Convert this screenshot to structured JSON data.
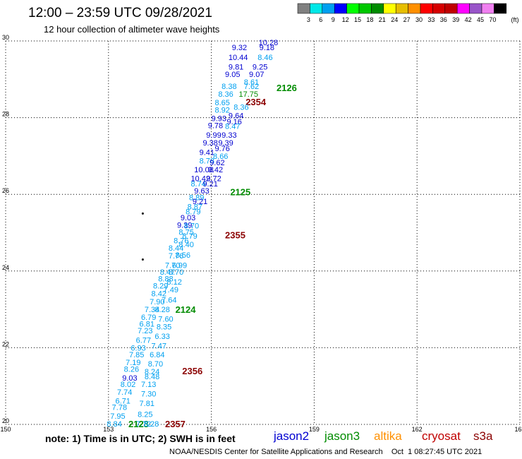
{
  "header": {
    "title": "12:00 – 23:59 UTC 09/28/2021",
    "subtitle": "12 hour collection of altimeter wave heights"
  },
  "legend": {
    "unit": "(ft)",
    "bins": [
      {
        "label": "3",
        "color": "#808080"
      },
      {
        "label": "6",
        "color": "#00e8e8"
      },
      {
        "label": "9",
        "color": "#00a0f0"
      },
      {
        "label": "12",
        "color": "#0000ff"
      },
      {
        "label": "15",
        "color": "#00ff00"
      },
      {
        "label": "18",
        "color": "#00c800"
      },
      {
        "label": "21",
        "color": "#008c00"
      },
      {
        "label": "24",
        "color": "#ffff00"
      },
      {
        "label": "27",
        "color": "#e6be00"
      },
      {
        "label": "30",
        "color": "#ff9000"
      },
      {
        "label": "33",
        "color": "#ff0000"
      },
      {
        "label": "36",
        "color": "#d60000"
      },
      {
        "label": "39",
        "color": "#c00000"
      },
      {
        "label": "42",
        "color": "#ff00ff"
      },
      {
        "label": "45",
        "color": "#9955c9"
      },
      {
        "label": "70",
        "color": "#f080f0"
      },
      {
        "label": "",
        "color": "#000000"
      }
    ]
  },
  "footer": {
    "note": "note: 1) Time is in UTC; 2) SWH is in feet",
    "credit": "NOAA/NESDIS Center for Satellite Applications and Research    Oct  1 08:27:45 UTC 2021",
    "missions": [
      {
        "name": "jason2",
        "color": "#0000d0"
      },
      {
        "name": "jason3",
        "color": "#008c00"
      },
      {
        "name": "altika",
        "color": "#ff9000"
      },
      {
        "name": "cryosat",
        "color": "#c00000"
      },
      {
        "name": "s3a",
        "color": "#8b0000"
      }
    ]
  },
  "chart_data": {
    "type": "scatter",
    "xlim": [
      150,
      165
    ],
    "ylim": [
      20,
      30
    ],
    "x_ticks": [
      150,
      153,
      156,
      159,
      162,
      165
    ],
    "y_ticks": [
      20,
      22,
      24,
      26,
      28,
      30
    ],
    "grid": true,
    "colors": {
      "blue": "#0000d0",
      "cyan": "#00a0f0",
      "green": "#008c00",
      "maroon": "#8b0000",
      "black": "#000000"
    },
    "labels": [
      {
        "t": "10.28",
        "x": 157.38,
        "y": 29.96,
        "c": "blue"
      },
      {
        "t": "9.32",
        "x": 156.6,
        "y": 29.83,
        "c": "blue"
      },
      {
        "t": "9.18",
        "x": 157.4,
        "y": 29.83,
        "c": "blue"
      },
      {
        "t": "10.44",
        "x": 156.5,
        "y": 29.58,
        "c": "blue"
      },
      {
        "t": "8.46",
        "x": 157.35,
        "y": 29.58,
        "c": "cyan"
      },
      {
        "t": "9.81",
        "x": 156.5,
        "y": 29.33,
        "c": "blue"
      },
      {
        "t": "9.25",
        "x": 157.2,
        "y": 29.33,
        "c": "blue"
      },
      {
        "t": "9.05",
        "x": 156.4,
        "y": 29.13,
        "c": "blue"
      },
      {
        "t": "9.07",
        "x": 157.1,
        "y": 29.13,
        "c": "blue"
      },
      {
        "t": "8.61",
        "x": 156.95,
        "y": 28.93,
        "c": "cyan"
      },
      {
        "t": "8.38",
        "x": 156.3,
        "y": 28.82,
        "c": "cyan"
      },
      {
        "t": "7.62",
        "x": 156.95,
        "y": 28.82,
        "c": "cyan"
      },
      {
        "t": "2126",
        "x": 157.9,
        "y": 28.77,
        "c": "green",
        "big": true
      },
      {
        "t": "8.36",
        "x": 156.2,
        "y": 28.62,
        "c": "cyan"
      },
      {
        "t": "17.75",
        "x": 156.8,
        "y": 28.62,
        "c": "green"
      },
      {
        "t": "8.65",
        "x": 156.1,
        "y": 28.4,
        "c": "cyan"
      },
      {
        "t": "2354",
        "x": 157.0,
        "y": 28.4,
        "c": "maroon",
        "big": true
      },
      {
        "t": "8.36",
        "x": 156.65,
        "y": 28.28,
        "c": "cyan"
      },
      {
        "t": "8.92",
        "x": 156.1,
        "y": 28.2,
        "c": "cyan"
      },
      {
        "t": "9.64",
        "x": 156.5,
        "y": 28.06,
        "c": "blue"
      },
      {
        "t": "9.93",
        "x": 156.0,
        "y": 27.98,
        "c": "blue"
      },
      {
        "t": "9.16",
        "x": 156.45,
        "y": 27.9,
        "c": "blue"
      },
      {
        "t": "9.78",
        "x": 155.9,
        "y": 27.8,
        "c": "blue"
      },
      {
        "t": "8.47",
        "x": 156.4,
        "y": 27.78,
        "c": "cyan"
      },
      {
        "t": "9.99",
        "x": 155.85,
        "y": 27.55,
        "c": "blue"
      },
      {
        "t": "9.33",
        "x": 156.3,
        "y": 27.55,
        "c": "blue"
      },
      {
        "t": "9.38",
        "x": 155.75,
        "y": 27.35,
        "c": "blue"
      },
      {
        "t": "9.39",
        "x": 156.2,
        "y": 27.35,
        "c": "blue"
      },
      {
        "t": "9.76",
        "x": 156.1,
        "y": 27.2,
        "c": "blue"
      },
      {
        "t": "9.41",
        "x": 155.65,
        "y": 27.1,
        "c": "blue"
      },
      {
        "t": "8.66",
        "x": 156.05,
        "y": 27.0,
        "c": "cyan"
      },
      {
        "t": "8.78",
        "x": 155.65,
        "y": 26.88,
        "c": "cyan"
      },
      {
        "t": "9.62",
        "x": 155.95,
        "y": 26.83,
        "c": "blue"
      },
      {
        "t": "10.08",
        "x": 155.5,
        "y": 26.65,
        "c": "blue"
      },
      {
        "t": "9.42",
        "x": 155.9,
        "y": 26.65,
        "c": "blue"
      },
      {
        "t": "10.42",
        "x": 155.4,
        "y": 26.42,
        "c": "blue"
      },
      {
        "t": "9.72",
        "x": 155.85,
        "y": 26.42,
        "c": "blue"
      },
      {
        "t": "8.74",
        "x": 155.4,
        "y": 26.28,
        "c": "cyan"
      },
      {
        "t": "9.21",
        "x": 155.75,
        "y": 26.28,
        "c": "blue"
      },
      {
        "t": "9.63",
        "x": 155.5,
        "y": 26.1,
        "c": "blue"
      },
      {
        "t": "2125",
        "x": 156.55,
        "y": 26.05,
        "c": "green",
        "big": true
      },
      {
        "t": "8.89",
        "x": 155.35,
        "y": 25.92,
        "c": "cyan"
      },
      {
        "t": "9.21",
        "x": 155.45,
        "y": 25.82,
        "c": "blue"
      },
      {
        "t": "8.87",
        "x": 155.3,
        "y": 25.68,
        "c": "cyan"
      },
      {
        "t": "8.79",
        "x": 155.25,
        "y": 25.55,
        "c": "cyan"
      },
      {
        "t": "9.03",
        "x": 155.1,
        "y": 25.4,
        "c": "blue"
      },
      {
        "t": "9.39",
        "x": 155.0,
        "y": 25.2,
        "c": "blue"
      },
      {
        "t": "8.70",
        "x": 155.2,
        "y": 25.18,
        "c": "cyan"
      },
      {
        "t": "8.75",
        "x": 155.05,
        "y": 25.02,
        "c": "cyan"
      },
      {
        "t": "8.79",
        "x": 155.15,
        "y": 24.92,
        "c": "cyan"
      },
      {
        "t": "2355",
        "x": 156.4,
        "y": 24.93,
        "c": "maroon",
        "big": true
      },
      {
        "t": "8.76",
        "x": 154.9,
        "y": 24.8,
        "c": "cyan"
      },
      {
        "t": "8.40",
        "x": 155.05,
        "y": 24.7,
        "c": "cyan"
      },
      {
        "t": "8.44",
        "x": 154.75,
        "y": 24.6,
        "c": "cyan"
      },
      {
        "t": "8.56",
        "x": 154.95,
        "y": 24.42,
        "c": "cyan"
      },
      {
        "t": "7.76",
        "x": 154.75,
        "y": 24.4,
        "c": "cyan"
      },
      {
        "t": "7.70",
        "x": 154.65,
        "y": 24.15,
        "c": "cyan"
      },
      {
        "t": "6.99",
        "x": 154.85,
        "y": 24.15,
        "c": "cyan"
      },
      {
        "t": "8.47",
        "x": 154.5,
        "y": 23.98,
        "c": "cyan"
      },
      {
        "t": "8.70",
        "x": 154.75,
        "y": 23.98,
        "c": "cyan"
      },
      {
        "t": "8.88",
        "x": 154.45,
        "y": 23.8,
        "c": "cyan"
      },
      {
        "t": "8.12",
        "x": 154.7,
        "y": 23.72,
        "c": "cyan"
      },
      {
        "t": "8.29",
        "x": 154.3,
        "y": 23.62,
        "c": "cyan"
      },
      {
        "t": "7.49",
        "x": 154.6,
        "y": 23.52,
        "c": "cyan"
      },
      {
        "t": "8.42",
        "x": 154.25,
        "y": 23.42,
        "c": "cyan"
      },
      {
        "t": "7.90",
        "x": 154.2,
        "y": 23.2,
        "c": "cyan"
      },
      {
        "t": "7.64",
        "x": 154.55,
        "y": 23.25,
        "c": "cyan"
      },
      {
        "t": "7.34",
        "x": 154.05,
        "y": 23.0,
        "c": "cyan"
      },
      {
        "t": "8.28",
        "x": 154.35,
        "y": 23.0,
        "c": "cyan"
      },
      {
        "t": "2124",
        "x": 154.95,
        "y": 22.98,
        "c": "green",
        "big": true
      },
      {
        "t": "6.79",
        "x": 153.95,
        "y": 22.8,
        "c": "cyan"
      },
      {
        "t": "7.60",
        "x": 154.45,
        "y": 22.75,
        "c": "cyan"
      },
      {
        "t": "6.81",
        "x": 153.9,
        "y": 22.62,
        "c": "cyan"
      },
      {
        "t": "8.35",
        "x": 154.4,
        "y": 22.55,
        "c": "cyan"
      },
      {
        "t": "7.23",
        "x": 153.85,
        "y": 22.45,
        "c": "cyan"
      },
      {
        "t": "6.33",
        "x": 154.35,
        "y": 22.3,
        "c": "cyan"
      },
      {
        "t": "6.77",
        "x": 153.8,
        "y": 22.2,
        "c": "cyan"
      },
      {
        "t": "6.93",
        "x": 153.65,
        "y": 22.0,
        "c": "cyan"
      },
      {
        "t": "7.47",
        "x": 154.25,
        "y": 22.05,
        "c": "cyan"
      },
      {
        "t": "7.85",
        "x": 153.6,
        "y": 21.82,
        "c": "cyan"
      },
      {
        "t": "6.84",
        "x": 154.2,
        "y": 21.82,
        "c": "cyan"
      },
      {
        "t": "7.19",
        "x": 153.5,
        "y": 21.62,
        "c": "cyan"
      },
      {
        "t": "8.70",
        "x": 154.15,
        "y": 21.58,
        "c": "cyan"
      },
      {
        "t": "8.26",
        "x": 153.45,
        "y": 21.45,
        "c": "cyan"
      },
      {
        "t": "8.24",
        "x": 154.05,
        "y": 21.38,
        "c": "cyan"
      },
      {
        "t": "2356",
        "x": 155.15,
        "y": 21.38,
        "c": "maroon",
        "big": true
      },
      {
        "t": "9.03",
        "x": 153.4,
        "y": 21.22,
        "c": "blue"
      },
      {
        "t": "8.48",
        "x": 154.05,
        "y": 21.25,
        "c": "cyan"
      },
      {
        "t": "8.02",
        "x": 153.35,
        "y": 21.05,
        "c": "cyan"
      },
      {
        "t": "7.13",
        "x": 153.95,
        "y": 21.05,
        "c": "cyan"
      },
      {
        "t": "7.74",
        "x": 153.25,
        "y": 20.85,
        "c": "cyan"
      },
      {
        "t": "7.30",
        "x": 153.95,
        "y": 20.8,
        "c": "cyan"
      },
      {
        "t": "6.71",
        "x": 153.2,
        "y": 20.62,
        "c": "cyan"
      },
      {
        "t": "7.81",
        "x": 153.9,
        "y": 20.55,
        "c": "cyan"
      },
      {
        "t": "7.78",
        "x": 153.1,
        "y": 20.45,
        "c": "cyan"
      },
      {
        "t": "7.95",
        "x": 153.05,
        "y": 20.22,
        "c": "cyan"
      },
      {
        "t": "8.25",
        "x": 153.85,
        "y": 20.27,
        "c": "cyan"
      },
      {
        "t": "8.84",
        "x": 152.95,
        "y": 20.02,
        "c": "cyan"
      },
      {
        "t": "2123",
        "x": 153.58,
        "y": 20.0,
        "c": "green",
        "big": true
      },
      {
        "t": "7.72",
        "x": 153.8,
        "y": 20.02,
        "c": "cyan"
      },
      {
        "t": "8.28",
        "x": 154.03,
        "y": 20.02,
        "c": "cyan"
      },
      {
        "t": "2357",
        "x": 154.65,
        "y": 20.0,
        "c": "maroon",
        "big": true
      }
    ],
    "dots": [
      {
        "x": 154.0,
        "y": 25.5
      },
      {
        "x": 154.0,
        "y": 24.3
      }
    ]
  }
}
